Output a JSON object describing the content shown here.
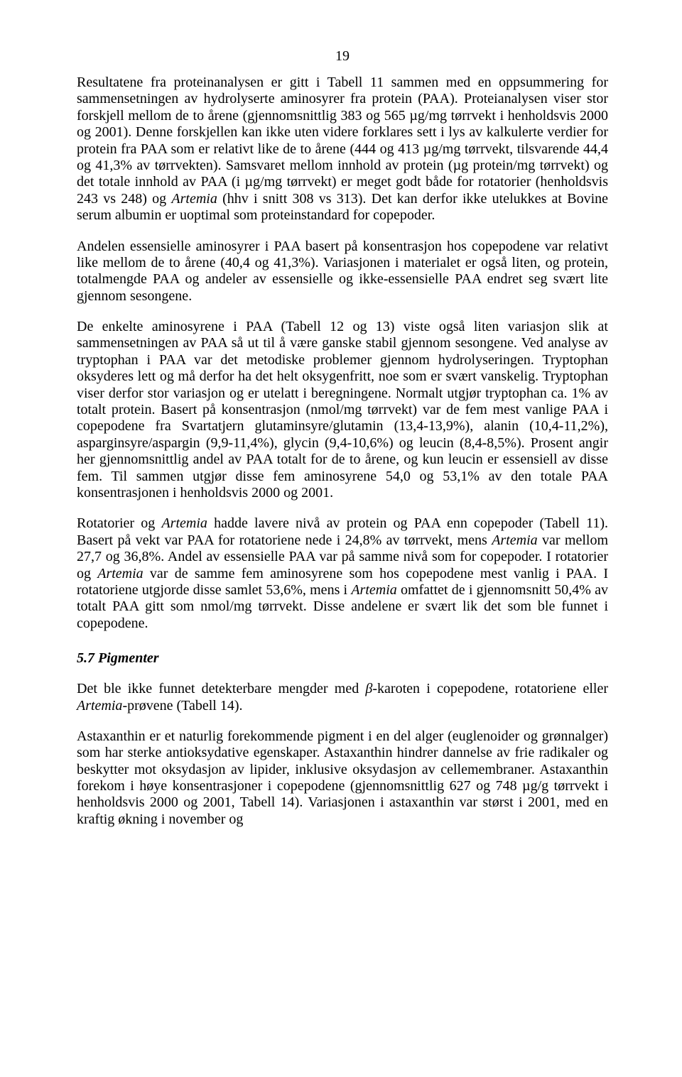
{
  "page": {
    "number": "19",
    "font_family": "Times New Roman",
    "body_font_size_pt": 15,
    "background_color": "#ffffff",
    "text_color": "#000000"
  },
  "paragraphs": {
    "p1_a": "Resultatene fra proteinanalysen er gitt i Tabell 11 sammen med en oppsummering for sammensetningen av hydrolyserte aminosyrer fra protein (PAA). Proteianalysen viser stor forskjell mellom de to årene (gjennomsnittlig 383 og 565 µg/mg tørrvekt i henholdsvis 2000 og 2001). Denne forskjellen kan ikke uten videre forklares sett i lys av kalkulerte verdier for protein fra PAA som er relativt like de to årene (444 og 413 µg/mg tørrvekt, tilsvarende 44,4 og 41,3% av tørrvekten). Samsvaret mellom innhold av protein (µg protein/mg tørrvekt) og det totale innhold av PAA (i µg/mg tørrvekt) er meget godt både for rotatorier (henholdsvis 243 vs 248) og ",
    "p1_b": "Artemia",
    "p1_c": " (hhv i snitt 308 vs 313). Det kan derfor ikke utelukkes at Bovine serum albumin er uoptimal som proteinstandard for copepoder.",
    "p2": "Andelen essensielle aminosyrer i PAA basert på konsentrasjon hos copepodene var relativt like mellom de to årene (40,4 og 41,3%). Variasjonen i materialet er også liten, og protein, totalmengde PAA og andeler av essensielle og ikke-essensielle PAA endret seg svært lite gjennom sesongene.",
    "p3": "De enkelte aminosyrene i PAA (Tabell 12 og 13) viste også liten variasjon slik at sammensetningen av PAA så ut til å være ganske stabil gjennom sesongene. Ved analyse av tryptophan i PAA var det metodiske problemer gjennom hydrolyseringen. Tryptophan oksyderes lett og må derfor ha det helt oksygenfritt, noe som er svært vanskelig. Tryptophan viser derfor stor variasjon og er utelatt i beregningene. Normalt utgjør tryptophan ca. 1% av totalt protein. Basert på konsentrasjon (nmol/mg tørrvekt) var de fem mest vanlige PAA i copepodene fra Svartatjern glutaminsyre/glutamin (13,4-13,9%), alanin (10,4-11,2%), asparginsyre/aspargin (9,9-11,4%), glycin (9,4-10,6%) og leucin (8,4-8,5%). Prosent angir her gjennomsnittlig andel av PAA totalt for de to årene, og kun leucin er essensiell av disse fem. Til sammen utgjør disse fem aminosyrene 54,0 og 53,1% av den totale PAA konsentrasjonen i henholdsvis 2000 og 2001.",
    "p4_a": "Rotatorier og ",
    "p4_b": "Artemia",
    "p4_c": " hadde lavere nivå av protein og PAA enn copepoder (Tabell 11). Basert på vekt var PAA for rotatoriene nede i 24,8% av tørrvekt, mens ",
    "p4_d": "Artemia",
    "p4_e": " var mellom 27,7 og 36,8%. Andel av essensielle PAA var på samme nivå som for copepoder. I rotatorier og ",
    "p4_f": "Artemia",
    "p4_g": " var de samme fem aminosyrene som hos copepodene mest vanlig i PAA. I rotatoriene utgjorde disse samlet 53,6%, mens i ",
    "p4_h": "Artemia",
    "p4_i": " omfattet de i gjennomsnitt 50,4% av totalt PAA gitt som nmol/mg tørrvekt. Disse andelene er svært lik det som ble funnet i copepodene.",
    "heading": "5.7 Pigmenter",
    "p5_a": "Det ble ikke funnet detekterbare mengder med ",
    "p5_b": "β",
    "p5_c": "-karoten i copepodene, rotatoriene eller ",
    "p5_d": "Artemia",
    "p5_e": "-prøvene (Tabell 14).",
    "p6": "Astaxanthin er et naturlig forekommende pigment i en del alger (euglenoider og grønnalger) som har sterke antioksydative egenskaper. Astaxanthin hindrer dannelse av frie radikaler og beskytter mot oksydasjon av lipider, inklusive oksydasjon av cellemembraner. Astaxanthin forekom i høye konsentrasjoner i copepodene (gjennomsnittlig 627 og 748 µg/g tørrvekt i henholdsvis 2000 og 2001, Tabell 14). Variasjonen i astaxanthin var størst i 2001, med en kraftig økning i november og"
  }
}
